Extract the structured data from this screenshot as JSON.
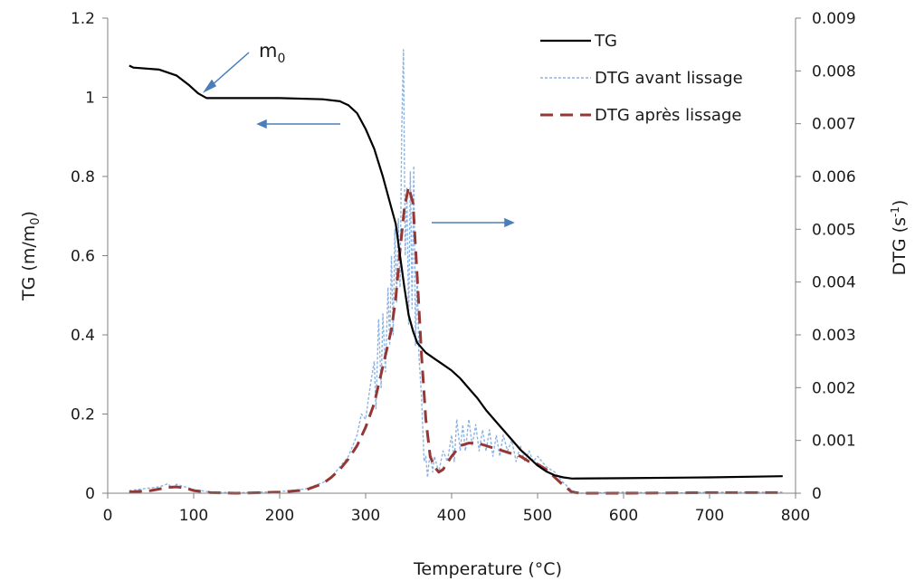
{
  "chart_data": {
    "type": "line",
    "xlabel": "Temperature (°C)",
    "ylabel_main": "TG (m/m",
    "ylabel_sub": "0",
    "ylabel_end": ")",
    "y2label_main": "DTG (s",
    "y2label_sup": "-1",
    "y2label_end": ")",
    "xlim": [
      0,
      800
    ],
    "ylim": [
      0,
      1.2
    ],
    "y2lim": [
      0,
      0.009
    ],
    "x_ticks": [
      "0",
      "100",
      "200",
      "300",
      "400",
      "500",
      "600",
      "700",
      "800"
    ],
    "y_ticks": [
      "0",
      "0.2",
      "0.4",
      "0.6",
      "0.8",
      "1",
      "1.2"
    ],
    "y2_ticks": [
      "0",
      "0.001",
      "0.002",
      "0.003",
      "0.004",
      "0.005",
      "0.006",
      "0.007",
      "0.008",
      "0.009"
    ],
    "grid": false,
    "legend_position": "top-right",
    "annotation": {
      "main": "m",
      "sub": "0"
    },
    "series": [
      {
        "name": "TG",
        "axis": "left",
        "color": "#000000",
        "style": "solid",
        "points": [
          [
            25,
            1.08
          ],
          [
            30,
            1.075
          ],
          [
            60,
            1.07
          ],
          [
            80,
            1.055
          ],
          [
            95,
            1.03
          ],
          [
            105,
            1.01
          ],
          [
            115,
            0.998
          ],
          [
            130,
            0.998
          ],
          [
            200,
            0.998
          ],
          [
            250,
            0.995
          ],
          [
            270,
            0.99
          ],
          [
            280,
            0.98
          ],
          [
            290,
            0.96
          ],
          [
            300,
            0.92
          ],
          [
            310,
            0.87
          ],
          [
            320,
            0.8
          ],
          [
            330,
            0.72
          ],
          [
            335,
            0.68
          ],
          [
            340,
            0.6
          ],
          [
            345,
            0.52
          ],
          [
            350,
            0.45
          ],
          [
            355,
            0.41
          ],
          [
            360,
            0.38
          ],
          [
            370,
            0.355
          ],
          [
            380,
            0.34
          ],
          [
            390,
            0.325
          ],
          [
            400,
            0.31
          ],
          [
            410,
            0.29
          ],
          [
            420,
            0.265
          ],
          [
            430,
            0.24
          ],
          [
            440,
            0.21
          ],
          [
            450,
            0.185
          ],
          [
            460,
            0.16
          ],
          [
            470,
            0.135
          ],
          [
            480,
            0.11
          ],
          [
            490,
            0.09
          ],
          [
            500,
            0.07
          ],
          [
            510,
            0.055
          ],
          [
            520,
            0.045
          ],
          [
            530,
            0.04
          ],
          [
            540,
            0.037
          ],
          [
            600,
            0.038
          ],
          [
            700,
            0.04
          ],
          [
            785,
            0.043
          ]
        ]
      },
      {
        "name": "DTG avant lissage",
        "axis": "right",
        "color": "#8db4e2",
        "style": "dotted",
        "points": [
          [
            25,
            5e-05
          ],
          [
            40,
            8e-05
          ],
          [
            60,
            0.00012
          ],
          [
            70,
            0.00018
          ],
          [
            75,
            0.0001
          ],
          [
            80,
            0.00017
          ],
          [
            90,
            0.00012
          ],
          [
            100,
            7e-05
          ],
          [
            120,
            2e-05
          ],
          [
            150,
            1e-05
          ],
          [
            200,
            3e-05
          ],
          [
            230,
            8e-05
          ],
          [
            250,
            0.0002
          ],
          [
            260,
            0.0003
          ],
          [
            270,
            0.0005
          ],
          [
            280,
            0.0007
          ],
          [
            290,
            0.0011
          ],
          [
            295,
            0.0015
          ],
          [
            300,
            0.0014
          ],
          [
            305,
            0.002
          ],
          [
            310,
            0.0025
          ],
          [
            312,
            0.0016
          ],
          [
            315,
            0.0033
          ],
          [
            318,
            0.002
          ],
          [
            320,
            0.0034
          ],
          [
            323,
            0.0023
          ],
          [
            326,
            0.0039
          ],
          [
            328,
            0.0028
          ],
          [
            330,
            0.0045
          ],
          [
            332,
            0.003
          ],
          [
            334,
            0.005
          ],
          [
            336,
            0.0036
          ],
          [
            338,
            0.0052
          ],
          [
            340,
            0.0039
          ],
          [
            342,
            0.0069
          ],
          [
            344,
            0.0084
          ],
          [
            346,
            0.0045
          ],
          [
            348,
            0.0058
          ],
          [
            350,
            0.0032
          ],
          [
            352,
            0.0061
          ],
          [
            354,
            0.0035
          ],
          [
            356,
            0.0062
          ],
          [
            358,
            0.0028
          ],
          [
            360,
            0.0042
          ],
          [
            362,
            0.0026
          ],
          [
            365,
            0.0018
          ],
          [
            368,
            0.0006
          ],
          [
            370,
            0.0007
          ],
          [
            372,
            0.0003
          ],
          [
            375,
            0.0008
          ],
          [
            378,
            0.0004
          ],
          [
            380,
            0.0007
          ],
          [
            385,
            0.0004
          ],
          [
            390,
            0.0008
          ],
          [
            395,
            0.0006
          ],
          [
            400,
            0.0011
          ],
          [
            403,
            0.0006
          ],
          [
            406,
            0.0014
          ],
          [
            410,
            0.0008
          ],
          [
            413,
            0.0013
          ],
          [
            416,
            0.0008
          ],
          [
            420,
            0.0014
          ],
          [
            424,
            0.0009
          ],
          [
            428,
            0.0013
          ],
          [
            432,
            0.0008
          ],
          [
            436,
            0.0012
          ],
          [
            440,
            0.0008
          ],
          [
            444,
            0.0012
          ],
          [
            448,
            0.0007
          ],
          [
            452,
            0.0011
          ],
          [
            456,
            0.0007
          ],
          [
            460,
            0.0011
          ],
          [
            465,
            0.0008
          ],
          [
            470,
            0.001
          ],
          [
            475,
            0.0006
          ],
          [
            480,
            0.0009
          ],
          [
            485,
            0.0006
          ],
          [
            490,
            0.0008
          ],
          [
            495,
            0.0006
          ],
          [
            500,
            0.0007
          ],
          [
            510,
            0.0005
          ],
          [
            520,
            0.0004
          ],
          [
            530,
            0.0002
          ],
          [
            540,
            5e-05
          ],
          [
            550,
            0.0
          ],
          [
            600,
            2e-05
          ],
          [
            650,
            0.0
          ],
          [
            700,
            2e-05
          ],
          [
            785,
            2e-05
          ]
        ]
      },
      {
        "name": "DTG après lissage",
        "axis": "right",
        "color": "#953735",
        "style": "dashed",
        "points": [
          [
            25,
            2e-05
          ],
          [
            50,
            5e-05
          ],
          [
            70,
            0.00011
          ],
          [
            80,
            0.00012
          ],
          [
            90,
            0.0001
          ],
          [
            100,
            5e-05
          ],
          [
            120,
            1e-05
          ],
          [
            150,
            0.0
          ],
          [
            200,
            2e-05
          ],
          [
            230,
            6e-05
          ],
          [
            250,
            0.00018
          ],
          [
            260,
            0.0003
          ],
          [
            270,
            0.00045
          ],
          [
            280,
            0.00065
          ],
          [
            290,
            0.0009
          ],
          [
            300,
            0.00125
          ],
          [
            310,
            0.0017
          ],
          [
            320,
            0.0024
          ],
          [
            330,
            0.0031
          ],
          [
            335,
            0.0037
          ],
          [
            340,
            0.0046
          ],
          [
            345,
            0.0054
          ],
          [
            350,
            0.0058
          ],
          [
            355,
            0.0055
          ],
          [
            360,
            0.0041
          ],
          [
            365,
            0.0026
          ],
          [
            370,
            0.0014
          ],
          [
            375,
            0.0007
          ],
          [
            380,
            0.0005
          ],
          [
            385,
            0.0004
          ],
          [
            390,
            0.00045
          ],
          [
            400,
            0.0007
          ],
          [
            410,
            0.0009
          ],
          [
            420,
            0.00095
          ],
          [
            430,
            0.00095
          ],
          [
            440,
            0.0009
          ],
          [
            450,
            0.00085
          ],
          [
            460,
            0.0008
          ],
          [
            470,
            0.00075
          ],
          [
            480,
            0.0007
          ],
          [
            490,
            0.0006
          ],
          [
            500,
            0.00055
          ],
          [
            510,
            0.00045
          ],
          [
            520,
            0.0003
          ],
          [
            530,
            0.00015
          ],
          [
            540,
            2e-05
          ],
          [
            550,
            0.0
          ],
          [
            600,
            0.0
          ],
          [
            700,
            1e-05
          ],
          [
            785,
            1e-05
          ]
        ]
      }
    ]
  }
}
